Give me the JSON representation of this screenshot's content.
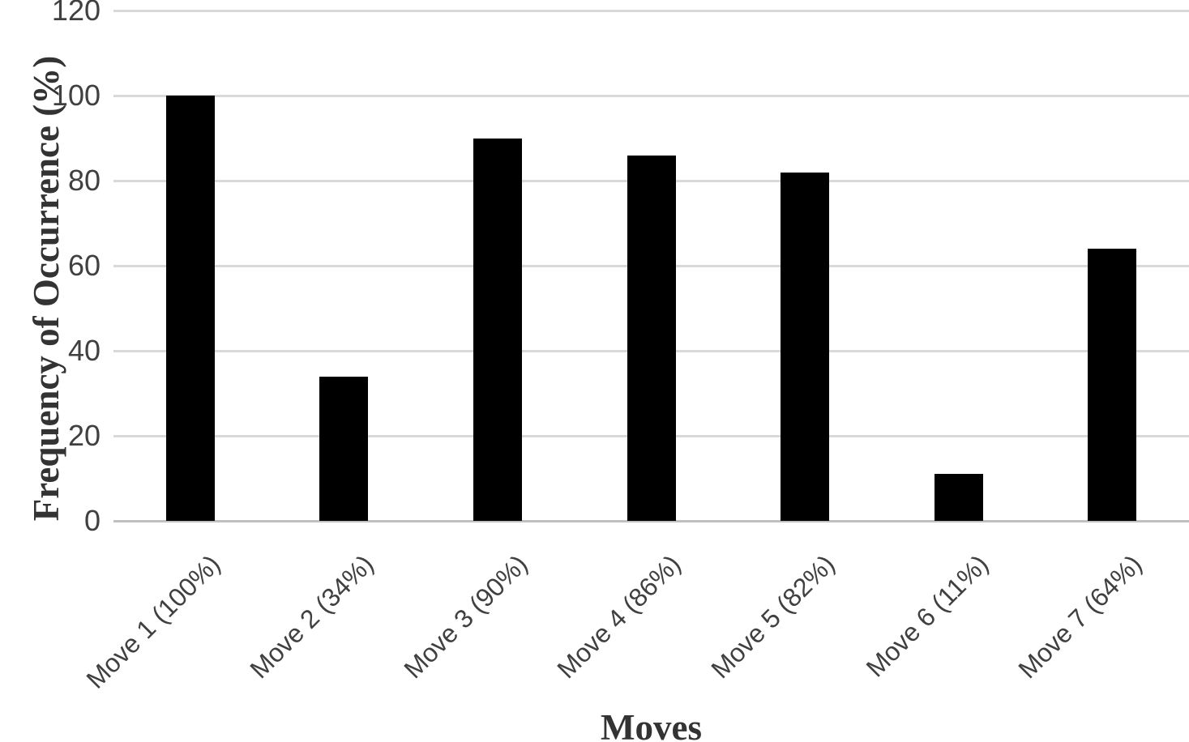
{
  "chart_data": {
    "type": "bar",
    "categories": [
      "Move 1 (100%)",
      "Move 2 (34%)",
      "Move 3 (90%)",
      "Move 4 (86%)",
      "Move 5 (82%)",
      "Move 6 (11%)",
      "Move 7 (64%)"
    ],
    "values": [
      100,
      34,
      90,
      86,
      82,
      11,
      64
    ],
    "title": "",
    "xlabel": "Moves",
    "ylabel": "Frequency of Occurrence (%)",
    "ylim": [
      0,
      120
    ],
    "yticks": [
      0,
      20,
      40,
      60,
      80,
      100,
      120
    ],
    "xtick_rotation_deg": 45,
    "grid": true,
    "legend": false,
    "colors": {
      "bar": "#000000",
      "gridline": "#d9d9d9",
      "axis_line": "#c0c0c0",
      "tick_text": "#404040",
      "title_text": "#333333"
    }
  }
}
